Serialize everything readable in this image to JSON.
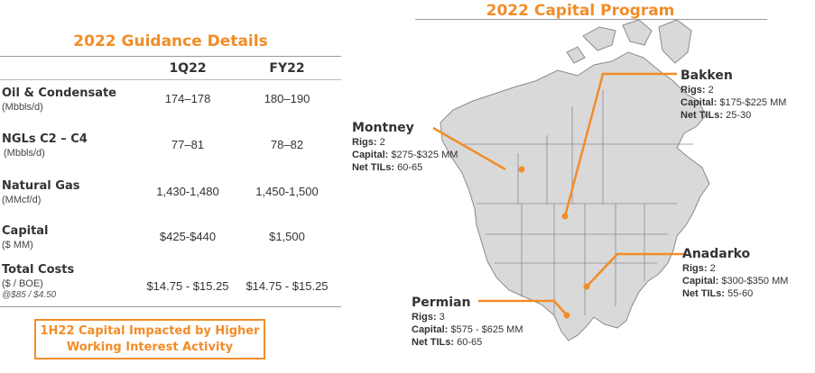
{
  "guidance": {
    "title": "2022 Guidance Details",
    "columns": [
      "1Q22",
      "FY22"
    ],
    "rows": [
      {
        "label": "Oil & Condensate",
        "unit": "(Mbbls/d)",
        "q1": "174–178",
        "fy": "180–190"
      },
      {
        "label": "NGLs C2 – C4",
        "unit": "(Mbbls/d)",
        "q1": "77–81",
        "fy": "78–82"
      },
      {
        "label": "Natural Gas",
        "unit": "(MMcf/d)",
        "q1": "1,430-1,480",
        "fy": "1,450-1,500"
      },
      {
        "label": "Capital",
        "unit": "($ MM)",
        "q1": "$425-$440",
        "fy": "$1,500"
      },
      {
        "label": "Total Costs",
        "unit": "($ / BOE)",
        "note": "@$85 / $4.50",
        "q1": "$14.75 - $15.25",
        "fy": "$14.75 - $15.25"
      }
    ],
    "callout_line1": "1H22 Capital Impacted by Higher",
    "callout_line2": "Working Interest Activity"
  },
  "program": {
    "title": "2022 Capital Program",
    "regions": [
      {
        "name": "Bakken",
        "rigs_label": "Rigs:",
        "rigs": "2",
        "capital_label": "Capital:",
        "capital": "$175-$225 MM",
        "tils_label": "Net TILs:",
        "tils": "25-30"
      },
      {
        "name": "Montney",
        "rigs_label": "Rigs:",
        "rigs": "2",
        "capital_label": "Capital:",
        "capital": "$275-$325 MM",
        "tils_label": "Net TILs:",
        "tils": "60-65"
      },
      {
        "name": "Anadarko",
        "rigs_label": "Rigs:",
        "rigs": "2",
        "capital_label": "Capital:",
        "capital": "$300-$350 MM",
        "tils_label": "Net TILs:",
        "tils": "55-60"
      },
      {
        "name": "Permian",
        "rigs_label": "Rigs:",
        "rigs": "3",
        "capital_label": "Capital:",
        "capital": "$575 - $625 MM",
        "tils_label": "Net TILs:",
        "tils": "60-65"
      }
    ]
  },
  "colors": {
    "accent": "#f28c28",
    "map_fill": "#d9d9d9",
    "map_border": "#8a8a8a",
    "text": "#333333"
  }
}
